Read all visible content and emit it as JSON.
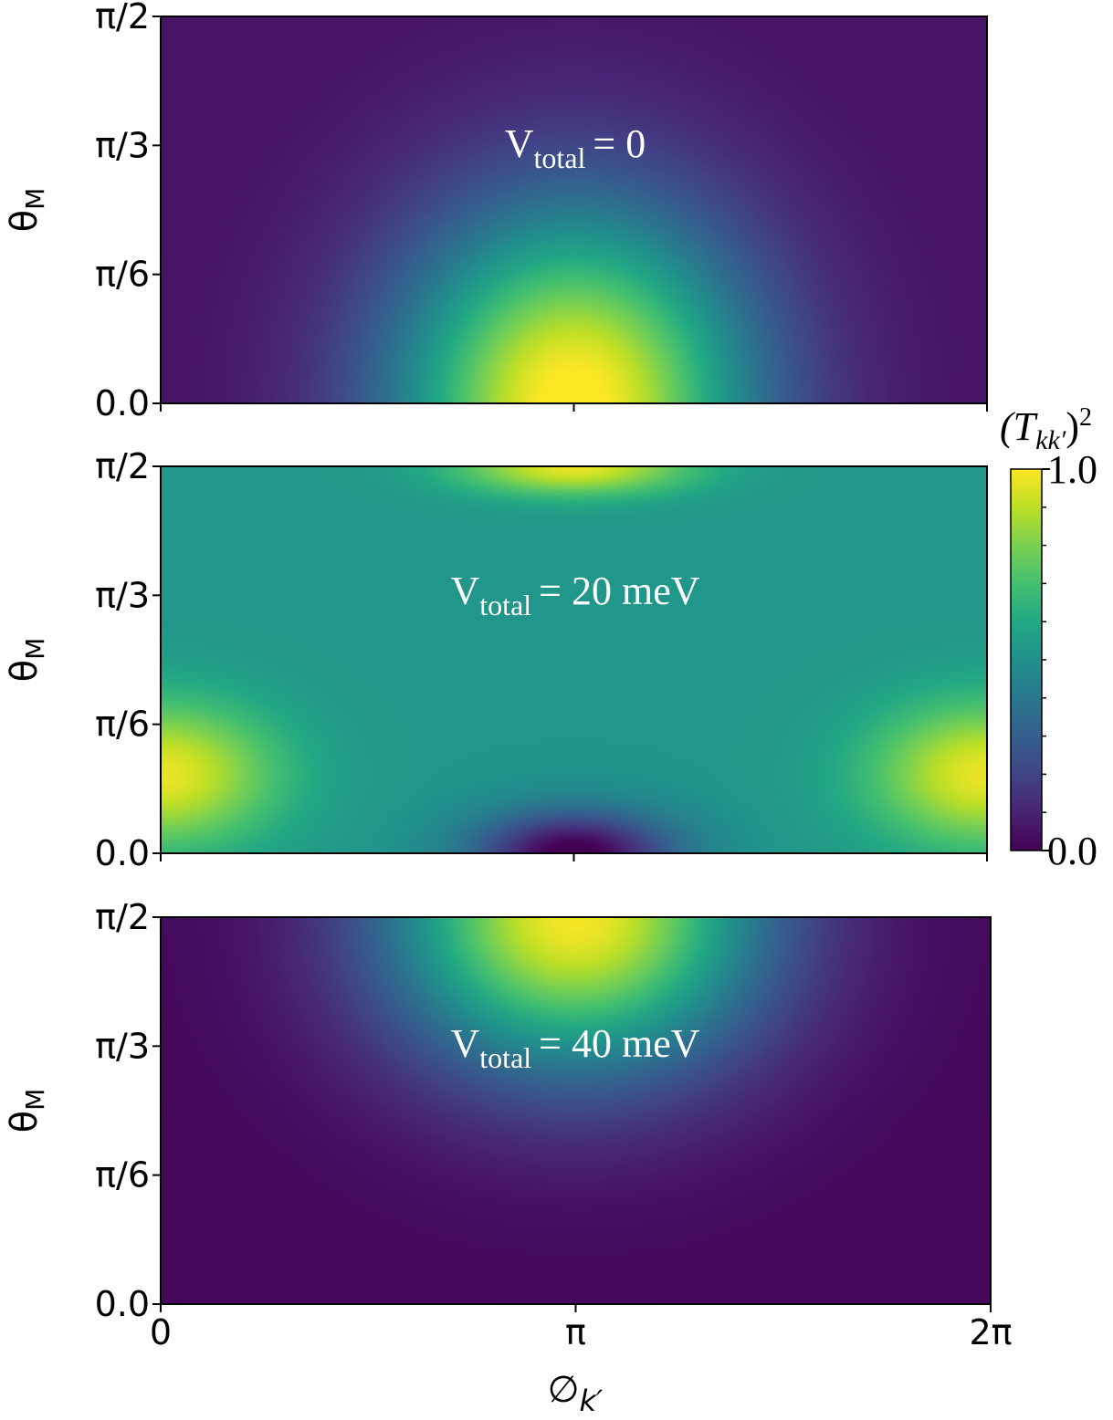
{
  "chart_data": {
    "type": "heatmap",
    "colormap": "viridis",
    "x_axis": {
      "label": "∅",
      "label_subscript": "k′",
      "range": [
        0,
        6.283185
      ],
      "ticks": [
        {
          "value": 0,
          "label": "0"
        },
        {
          "value": 3.141593,
          "label": "π"
        },
        {
          "value": 6.283185,
          "label": "2π"
        }
      ]
    },
    "y_axis": {
      "label": "θ",
      "label_subscript": "M",
      "range": [
        0,
        1.570796
      ],
      "ticks": [
        {
          "value": 0,
          "label": "0.0"
        },
        {
          "value": 0.523599,
          "label": "π/6"
        },
        {
          "value": 1.047198,
          "label": "π/3"
        },
        {
          "value": 1.570796,
          "label": "π/2"
        }
      ]
    },
    "colorbar": {
      "label": "(T",
      "label_subscript": "kk′",
      "label_suffix": ")",
      "label_superscript": "2",
      "range": [
        0,
        1
      ],
      "tick_labels": [
        "0.0",
        "1.0"
      ],
      "minor_ticks": [
        0.1,
        0.2,
        0.3,
        0.4,
        0.5,
        0.6,
        0.7,
        0.8,
        0.9
      ]
    },
    "panels": [
      {
        "label_main": "V",
        "label_sub": "total",
        "label_value": "= 0",
        "peaks": [
          {
            "phi": 3.14,
            "theta": 0.0,
            "amplitude": 0.98,
            "sigma_phi": 1.35,
            "sigma_theta": 0.78
          }
        ],
        "background": 0.05
      },
      {
        "label_main": "V",
        "label_sub": "total",
        "label_value": "= 20 meV",
        "peaks": [
          {
            "phi": 3.14,
            "theta": 1.57,
            "amplitude": 0.45,
            "sigma_phi": 0.9,
            "sigma_theta": 0.12
          },
          {
            "phi": 0.0,
            "theta": 0.32,
            "amplitude": 0.45,
            "sigma_phi": 0.9,
            "sigma_theta": 0.3
          },
          {
            "phi": 6.28,
            "theta": 0.32,
            "amplitude": 0.45,
            "sigma_phi": 0.9,
            "sigma_theta": 0.3
          }
        ],
        "dips": [
          {
            "phi": 3.14,
            "theta": 0.0,
            "amplitude": 0.55,
            "sigma_phi": 0.75,
            "sigma_theta": 0.17
          }
        ],
        "background": 0.52
      },
      {
        "label_main": "V",
        "label_sub": "total",
        "label_value": "= 40 meV",
        "peaks": [
          {
            "phi": 3.14,
            "theta": 1.57,
            "amplitude": 0.97,
            "sigma_phi": 1.4,
            "sigma_theta": 0.62
          }
        ],
        "background": 0.02
      }
    ]
  }
}
